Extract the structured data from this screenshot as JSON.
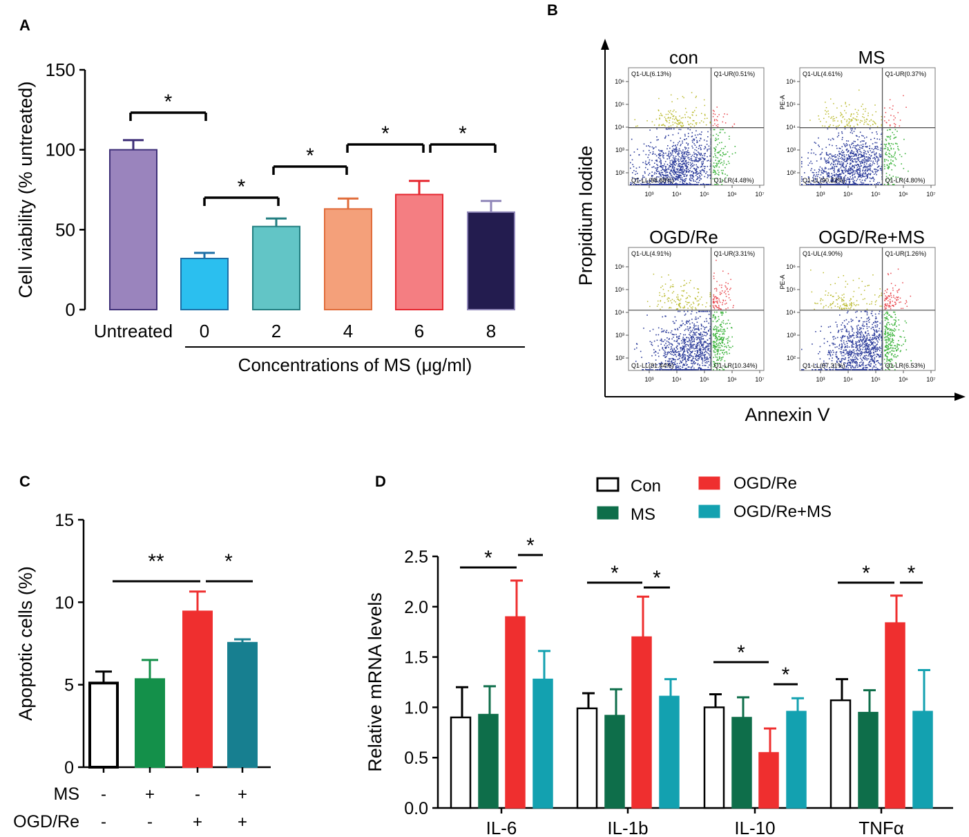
{
  "chart_data": [
    {
      "panel": "A",
      "type": "bar",
      "ylabel": "Cell viability (% untreated)",
      "xlabel": "Concentrations of MS (μg/ml)",
      "ylim": [
        0,
        150
      ],
      "yticks": [
        0,
        50,
        100,
        150
      ],
      "categories": [
        "Untreated",
        "0",
        "2",
        "4",
        "6",
        "8"
      ],
      "values": [
        100,
        32,
        52,
        63,
        72,
        61
      ],
      "errors": [
        6,
        3.5,
        5,
        6.5,
        8.5,
        7
      ],
      "colors": [
        "#9a84bd",
        "#2bbfef",
        "#62c5c6",
        "#f4a07a",
        "#f47e82",
        "#231c4f"
      ],
      "edge_colors": [
        "#3e2f78",
        "#1c6fa6",
        "#227e80",
        "#e06c3a",
        "#e5272f",
        "#8f86b8"
      ],
      "significance": [
        {
          "from": 0,
          "to": 1,
          "label": "*"
        },
        {
          "from": 1,
          "to": 2,
          "label": "*"
        },
        {
          "from": 2,
          "to": 3,
          "label": "*"
        },
        {
          "from": 3,
          "to": 4,
          "label": "*"
        },
        {
          "from": 4,
          "to": 5,
          "label": "*"
        }
      ]
    },
    {
      "panel": "B",
      "type": "scatter",
      "xlabel": "Annexin V",
      "ylabel": "Propidium Iodide",
      "x_tick_labels": [
        "10³",
        "10⁴",
        "10⁵",
        "10⁶",
        "10⁷"
      ],
      "y_tick_labels": [
        "10²",
        "10³",
        "10⁴",
        "10⁵",
        "10⁶"
      ],
      "y_axis_short_label": "PE-A",
      "panels": [
        {
          "title": "con",
          "UL": "Q1-UL(6.13%)",
          "UR": "Q1-UR(0.51%)",
          "LL": "Q1-LL(88.88%)",
          "LR": "Q1-LR(4.48%)",
          "ylabel_pe": false
        },
        {
          "title": "MS",
          "UL": "Q1-UL(4.61%)",
          "UR": "Q1-UR(0.37%)",
          "LL": "Q1-LL(90.22%)",
          "LR": "Q1-LR(4.80%)",
          "ylabel_pe": true
        },
        {
          "title": "OGD/Re",
          "UL": "Q1-UL(4.91%)",
          "UR": "Q1-UR(3.31%)",
          "LL": "Q1-LL(81.44%)",
          "LR": "Q1-LR(10.34%)",
          "ylabel_pe": false
        },
        {
          "title": "OGD/Re+MS",
          "UL": "Q1-UL(4.90%)",
          "UR": "Q1-UR(1.26%)",
          "LL": "Q1-LL(87.31%)",
          "LR": "Q1-LR(6.53%)",
          "ylabel_pe": true
        }
      ],
      "quadrant_colors": {
        "UL": "#b9b92a",
        "UR": "#e8434a",
        "LL": "#2b3b9a",
        "LR": "#3bb33b"
      }
    },
    {
      "panel": "C",
      "type": "bar",
      "ylabel": "Apoptotic cells (%)",
      "ylim": [
        0,
        15
      ],
      "yticks": [
        0,
        5,
        10,
        15
      ],
      "values": [
        5.1,
        5.35,
        9.45,
        7.55
      ],
      "errors": [
        0.7,
        1.15,
        1.2,
        0.2
      ],
      "fill_colors": [
        "#ffffff",
        "#14904a",
        "#ef2f2f",
        "#177f90"
      ],
      "edge_colors": [
        "#000000",
        "#14904a",
        "#ef2f2f",
        "#177f90"
      ],
      "row_labels": [
        "MS",
        "OGD/Re"
      ],
      "ms_signs": [
        "-",
        "+",
        "-",
        "+"
      ],
      "ogd_signs": [
        "-",
        "-",
        "+",
        "+"
      ],
      "significance": [
        {
          "from": 0,
          "to": 2,
          "label": "**"
        },
        {
          "from": 2,
          "to": 3,
          "label": "*"
        }
      ]
    },
    {
      "panel": "D",
      "type": "bar",
      "ylabel": "Relative mRNA levels",
      "ylim": [
        0,
        2.5
      ],
      "yticks": [
        "0.0",
        "0.5",
        "1.0",
        "1.5",
        "2.0",
        "2.5"
      ],
      "categories": [
        "IL-6",
        "IL-1b",
        "IL-10",
        "TNFα"
      ],
      "series": [
        {
          "name": "Con",
          "values": [
            0.9,
            0.99,
            1.0,
            1.07
          ],
          "errors": [
            0.3,
            0.15,
            0.13,
            0.21
          ],
          "fill": "#ffffff",
          "edge": "#000000"
        },
        {
          "name": "MS",
          "values": [
            0.93,
            0.92,
            0.9,
            0.95
          ],
          "errors": [
            0.28,
            0.26,
            0.2,
            0.22
          ],
          "fill": "#0e6e4a",
          "edge": "#0e6e4a"
        },
        {
          "name": "OGD/Re",
          "values": [
            1.9,
            1.7,
            0.55,
            1.84
          ],
          "errors": [
            0.36,
            0.4,
            0.24,
            0.27
          ],
          "fill": "#ef2f2f",
          "edge": "#ef2f2f"
        },
        {
          "name": "OGD/Re+MS",
          "values": [
            1.28,
            1.11,
            0.96,
            0.96
          ],
          "errors": [
            0.28,
            0.17,
            0.13,
            0.41
          ],
          "fill": "#13a1b0",
          "edge": "#13a1b0"
        }
      ],
      "significance": [
        {
          "group": 0,
          "from": 0,
          "to": 2,
          "label": "*"
        },
        {
          "group": 0,
          "from": 2,
          "to": 3,
          "label": "*"
        },
        {
          "group": 1,
          "from": 0,
          "to": 2,
          "label": "*"
        },
        {
          "group": 1,
          "from": 2,
          "to": 3,
          "label": "*"
        },
        {
          "group": 2,
          "from": 0,
          "to": 2,
          "label": "*"
        },
        {
          "group": 2,
          "from": 2,
          "to": 3,
          "label": "*"
        },
        {
          "group": 3,
          "from": 0,
          "to": 2,
          "label": "*"
        },
        {
          "group": 3,
          "from": 2,
          "to": 3,
          "label": "*"
        }
      ]
    }
  ],
  "panel_labels": {
    "a": "A",
    "b": "B",
    "c": "C",
    "d": "D"
  }
}
